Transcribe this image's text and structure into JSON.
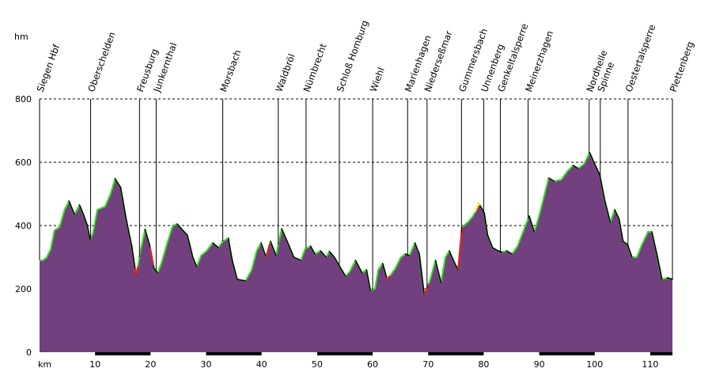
{
  "chart_data": {
    "type": "area",
    "ylabel": "hm",
    "xlabel": "km",
    "xlim": [
      0,
      114
    ],
    "ylim": [
      0,
      800
    ],
    "x_ticks": [
      10,
      20,
      30,
      40,
      50,
      60,
      70,
      80,
      90,
      100,
      110
    ],
    "y_ticks": [
      0,
      200,
      400,
      600,
      800
    ],
    "grid": "horizontal dashed",
    "colors": {
      "fill_top": "#e6dcec",
      "fill_bottom": "#73407f",
      "gradient_line": "#33dd22",
      "steep_up": "#dd2222",
      "steep_yellow": "#ffee22",
      "profile_line": "#000000"
    },
    "places": [
      {
        "name": "Siegen Hbf",
        "km": 0
      },
      {
        "name": "Oberschelden",
        "km": 9.2
      },
      {
        "name": "Freusburg",
        "km": 18
      },
      {
        "name": "Junkernthal",
        "km": 21
      },
      {
        "name": "Morsbach",
        "km": 33
      },
      {
        "name": "Waldbröl",
        "km": 43
      },
      {
        "name": "Nümbrecht",
        "km": 48
      },
      {
        "name": "Schloß Homburg",
        "km": 54
      },
      {
        "name": "Wiehl",
        "km": 60
      },
      {
        "name": "Marienhagen",
        "km": 66.3
      },
      {
        "name": "Niederseßmar",
        "km": 69.8
      },
      {
        "name": "Gummersbach",
        "km": 76
      },
      {
        "name": "Unnenberg",
        "km": 80
      },
      {
        "name": "Genkeltalsperre",
        "km": 83
      },
      {
        "name": "Meinerzhagen",
        "km": 88
      },
      {
        "name": "Nordhelle",
        "km": 99
      },
      {
        "name": "Spinne",
        "km": 101
      },
      {
        "name": "Oestertalsperre",
        "km": 106
      },
      {
        "name": "Plettenberg",
        "km": 114
      }
    ],
    "elevation_profile": [
      [
        0,
        290
      ],
      [
        0.6,
        290
      ],
      [
        1.3,
        300
      ],
      [
        2,
        325
      ],
      [
        2.7,
        385
      ],
      [
        3.6,
        395
      ],
      [
        4.5,
        450
      ],
      [
        5.3,
        477
      ],
      [
        6.3,
        435
      ],
      [
        7.2,
        465
      ],
      [
        7.8,
        440
      ],
      [
        8.6,
        400
      ],
      [
        9.1,
        355
      ],
      [
        9.6,
        375
      ],
      [
        10.4,
        450
      ],
      [
        11.8,
        460
      ],
      [
        12.8,
        500
      ],
      [
        13.6,
        548
      ],
      [
        14.6,
        520
      ],
      [
        15.6,
        420
      ],
      [
        16.6,
        335
      ],
      [
        17.4,
        240
      ],
      [
        18.2,
        320
      ],
      [
        19.0,
        388
      ],
      [
        19.8,
        340
      ],
      [
        20.6,
        265
      ],
      [
        21.3,
        250
      ],
      [
        22.1,
        290
      ],
      [
        23.0,
        345
      ],
      [
        24.0,
        400
      ],
      [
        24.8,
        405
      ],
      [
        25.8,
        385
      ],
      [
        26.6,
        370
      ],
      [
        27.6,
        300
      ],
      [
        28.3,
        270
      ],
      [
        29.1,
        305
      ],
      [
        30.1,
        320
      ],
      [
        31.2,
        345
      ],
      [
        32.2,
        330
      ],
      [
        33.0,
        350
      ],
      [
        34.0,
        360
      ],
      [
        34.7,
        290
      ],
      [
        35.6,
        230
      ],
      [
        37.1,
        225
      ],
      [
        38.2,
        260
      ],
      [
        39.1,
        320
      ],
      [
        39.9,
        345
      ],
      [
        40.8,
        300
      ],
      [
        41.6,
        350
      ],
      [
        42.6,
        305
      ],
      [
        43.6,
        390
      ],
      [
        44.6,
        350
      ],
      [
        45.8,
        300
      ],
      [
        47.1,
        290
      ],
      [
        47.8,
        325
      ],
      [
        48.8,
        335
      ],
      [
        49.6,
        310
      ],
      [
        50.6,
        320
      ],
      [
        51.6,
        300
      ],
      [
        52.2,
        318
      ],
      [
        53.1,
        300
      ],
      [
        54.1,
        270
      ],
      [
        55.1,
        240
      ],
      [
        55.9,
        255
      ],
      [
        56.9,
        290
      ],
      [
        58.1,
        250
      ],
      [
        58.9,
        260
      ],
      [
        59.6,
        195
      ],
      [
        60.4,
        200
      ],
      [
        61.0,
        260
      ],
      [
        61.8,
        280
      ],
      [
        62.6,
        230
      ],
      [
        63.3,
        245
      ],
      [
        64.1,
        265
      ],
      [
        65.1,
        300
      ],
      [
        65.9,
        310
      ],
      [
        66.6,
        305
      ],
      [
        67.6,
        345
      ],
      [
        68.4,
        310
      ],
      [
        69.3,
        180
      ],
      [
        70.3,
        225
      ],
      [
        71.3,
        290
      ],
      [
        72.3,
        220
      ],
      [
        73.1,
        300
      ],
      [
        73.8,
        320
      ],
      [
        74.8,
        280
      ],
      [
        75.4,
        260
      ],
      [
        76.1,
        395
      ],
      [
        77.1,
        410
      ],
      [
        78.1,
        430
      ],
      [
        79.1,
        470
      ],
      [
        80.1,
        440
      ],
      [
        80.7,
        370
      ],
      [
        81.6,
        330
      ],
      [
        82.6,
        320
      ],
      [
        83.3,
        316
      ],
      [
        84.1,
        320
      ],
      [
        85.1,
        310
      ],
      [
        86.1,
        335
      ],
      [
        87.2,
        385
      ],
      [
        88.2,
        430
      ],
      [
        89.1,
        380
      ],
      [
        89.9,
        425
      ],
      [
        90.7,
        480
      ],
      [
        91.7,
        550
      ],
      [
        92.7,
        540
      ],
      [
        94.0,
        545
      ],
      [
        95.0,
        570
      ],
      [
        96.1,
        590
      ],
      [
        97.0,
        580
      ],
      [
        98.1,
        595
      ],
      [
        99.1,
        630
      ],
      [
        100.1,
        590
      ],
      [
        100.9,
        560
      ],
      [
        101.8,
        480
      ],
      [
        102.8,
        410
      ],
      [
        103.6,
        450
      ],
      [
        104.4,
        420
      ],
      [
        105.1,
        350
      ],
      [
        105.9,
        340
      ],
      [
        106.7,
        300
      ],
      [
        107.6,
        300
      ],
      [
        108.5,
        340
      ],
      [
        109.6,
        380
      ],
      [
        110.3,
        380
      ],
      [
        111.3,
        300
      ],
      [
        112.1,
        230
      ],
      [
        113.1,
        235
      ],
      [
        114.0,
        230
      ]
    ],
    "steep_segments": [
      {
        "color": "red",
        "km": [
          17.2,
          17.7
        ]
      },
      {
        "color": "red",
        "km": [
          19.9,
          20.5
        ]
      },
      {
        "color": "red",
        "km": [
          40.8,
          41.5
        ]
      },
      {
        "color": "red",
        "km": [
          62.5,
          63.1
        ]
      },
      {
        "color": "red",
        "km": [
          69.3,
          70.1
        ]
      },
      {
        "color": "red",
        "km": [
          75.3,
          76.1
        ]
      },
      {
        "color": "yellow",
        "km": [
          78.4,
          79.3
        ]
      }
    ]
  }
}
